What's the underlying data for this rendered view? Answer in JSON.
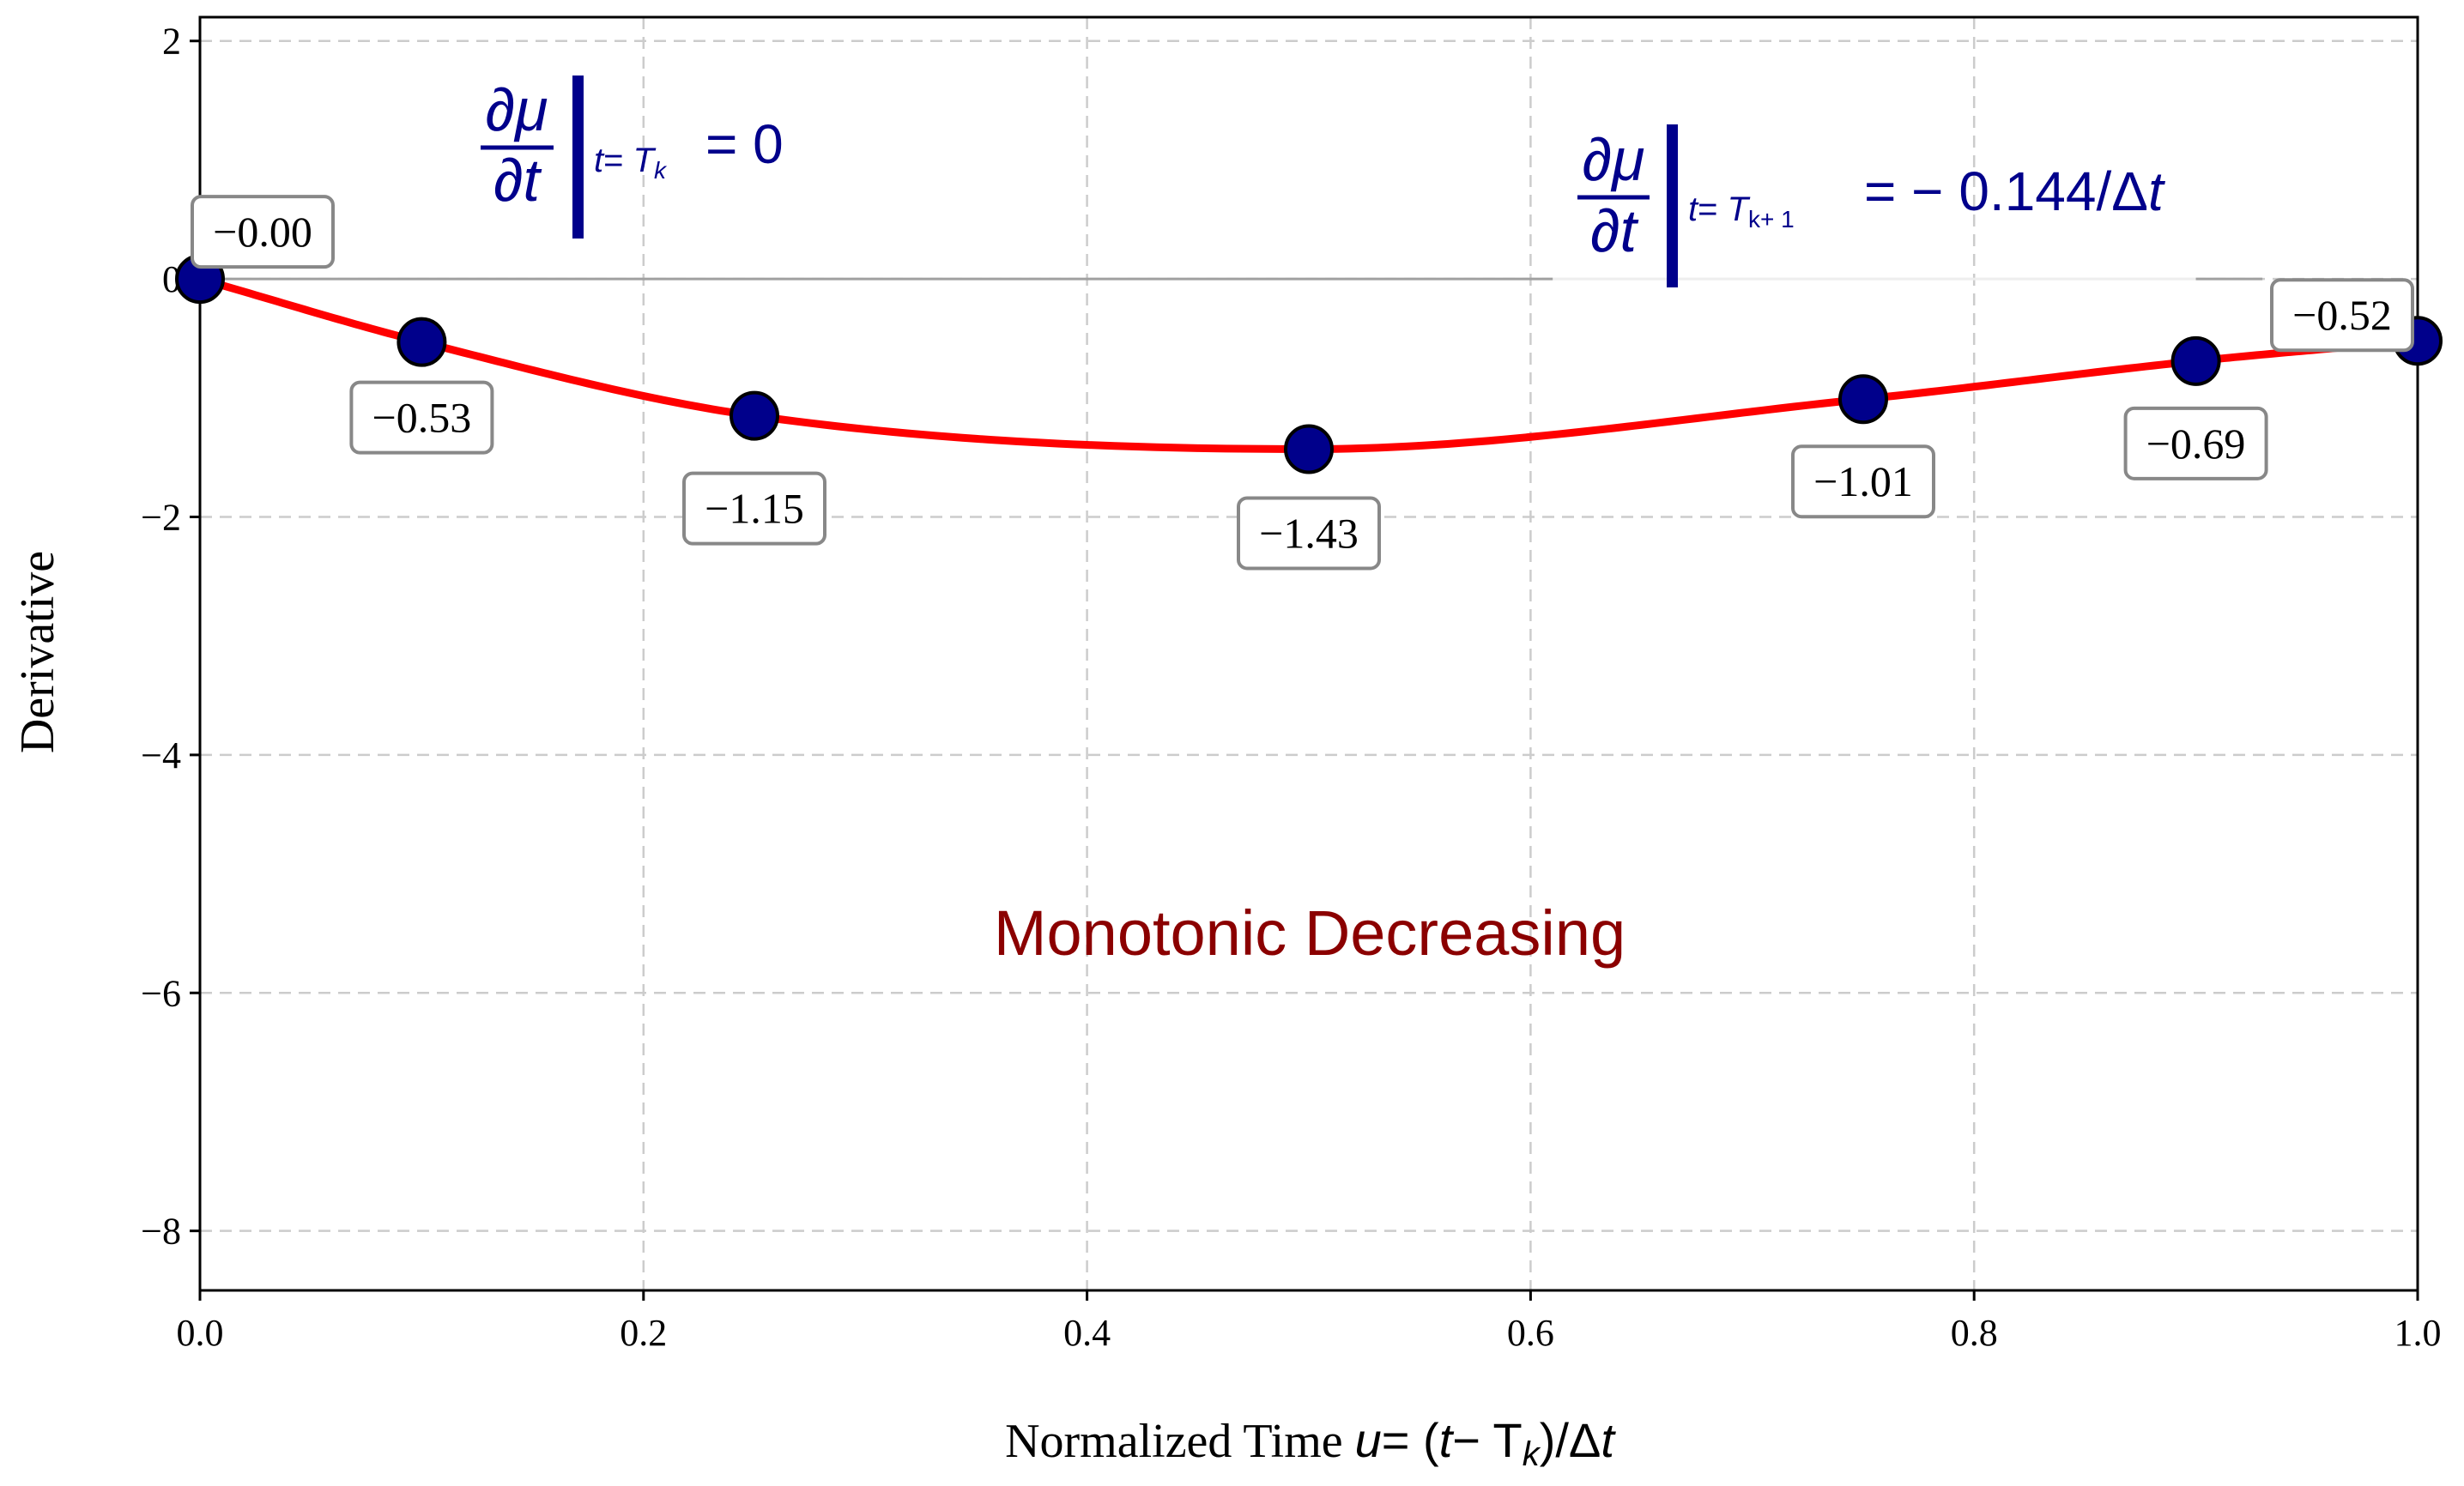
{
  "chart_data": {
    "type": "line",
    "xlabel": "Normalized Time",
    "xlabel_math": {
      "u": "u",
      "eq": "= (",
      "t": "t",
      "minus": "− T",
      "sub": "k",
      "tail": ")/Δ",
      "t2": "t"
    },
    "ylabel": "Derivative",
    "xlim": [
      0.0,
      1.0
    ],
    "ylim": [
      -8.5,
      2.2
    ],
    "xticks": [
      0.0,
      0.2,
      0.4,
      0.6,
      0.8,
      1.0
    ],
    "xtick_labels": [
      "0.0",
      "0.2",
      "0.4",
      "0.6",
      "0.8",
      "1.0"
    ],
    "yticks": [
      2,
      0,
      -2,
      -4,
      -6,
      -8
    ],
    "ytick_labels": [
      "2",
      "0",
      "−2",
      "−4",
      "−6",
      "−8"
    ],
    "grid": true,
    "curve_color": "#ff0000",
    "marker_color": "#00008b",
    "reference_line_y": 0,
    "points": [
      {
        "x": 0.0,
        "y": 0.0,
        "label": "−0.00"
      },
      {
        "x": 0.1,
        "y": -0.53,
        "label": "−0.53"
      },
      {
        "x": 0.25,
        "y": -1.15,
        "label": "−1.15"
      },
      {
        "x": 0.5,
        "y": -1.43,
        "label": "−1.43"
      },
      {
        "x": 0.75,
        "y": -1.01,
        "label": "−1.01"
      },
      {
        "x": 0.9,
        "y": -0.69,
        "label": "−0.69"
      },
      {
        "x": 1.0,
        "y": -0.52,
        "label": "−0.52"
      }
    ],
    "annotations": {
      "left_equation": {
        "numerator": "∂μ",
        "denominator": "∂t",
        "condition_t": "t",
        "condition_eq": "= ",
        "condition_T": "T",
        "condition_sub": "k",
        "value": "= 0"
      },
      "right_equation": {
        "numerator": "∂μ",
        "denominator": "∂t",
        "condition_t": "t",
        "condition_eq": "= ",
        "condition_T": "T",
        "condition_sub": "k+ 1",
        "value": "= − 0.144/Δ",
        "value_t": "t"
      },
      "center_text": "Monotonic Decreasing",
      "center_text_color": "#8b0000"
    }
  }
}
